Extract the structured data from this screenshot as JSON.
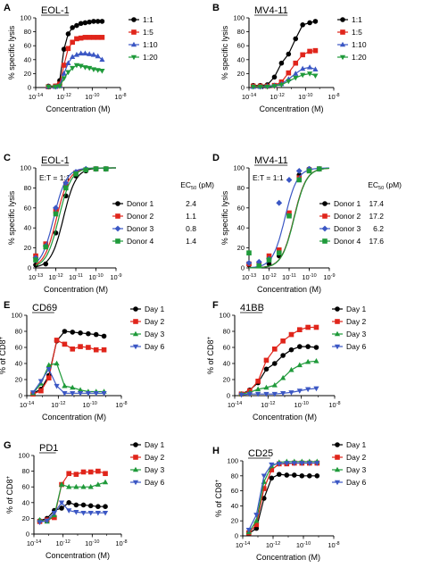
{
  "colors": {
    "black": "#000000",
    "red": "#e0251b",
    "blue": "#3b57c4",
    "green": "#1f9a3a"
  },
  "panels": [
    {
      "letter": "A",
      "title": "EOL-1",
      "ylabel": "% specific lysis",
      "xlabel": "Concentration (M)"
    },
    {
      "letter": "B",
      "title": "MV4-11",
      "ylabel": "% specific lysis",
      "xlabel": "Concentration (M)"
    },
    {
      "letter": "C",
      "title": "EOL-1",
      "ylabel": "% specific lysis",
      "xlabel": "Concentration (M)",
      "note": "E:T = 1:1",
      "ec50_header": "EC50 (pM)"
    },
    {
      "letter": "D",
      "title": "MV4-11",
      "ylabel": "% specific lysis",
      "xlabel": "Concentration (M)",
      "note": "E:T = 1:1",
      "ec50_header": "EC50 (pM)"
    },
    {
      "letter": "E",
      "title": "CD69",
      "ylabel": "% of CD8+",
      "xlabel": "Concentration (M)"
    },
    {
      "letter": "F",
      "title": "41BB",
      "ylabel": "% of CD8+",
      "xlabel": "Concentration (M)"
    },
    {
      "letter": "G",
      "title": "PD1",
      "ylabel": "% of CD8+",
      "xlabel": "Concentration (M)"
    },
    {
      "letter": "H",
      "title": "CD25",
      "ylabel": "% of CD8+",
      "xlabel": "Concentration (M)"
    }
  ],
  "chart_data": [
    {
      "type": "line",
      "title": "EOL-1",
      "xlabel": "Concentration (M)",
      "ylabel": "% specific lysis",
      "xscale": "log",
      "xlim_exp": [
        -14,
        -8
      ],
      "xticks": [
        "10-14",
        "10-12",
        "10-10",
        "10-8"
      ],
      "ylim": [
        0,
        100
      ],
      "yticks": [
        0,
        20,
        40,
        60,
        80,
        100
      ],
      "x_exp": [
        -13.1,
        -12.6,
        -12.3,
        -12.0,
        -11.7,
        -11.4,
        -11.1,
        -10.8,
        -10.5,
        -10.2,
        -9.9,
        -9.6,
        -9.3
      ],
      "series": [
        {
          "name": "1:1",
          "color": "black",
          "marker": "circle",
          "values": [
            2,
            2,
            10,
            55,
            77,
            86,
            89,
            92,
            93,
            94,
            95,
            95,
            95
          ]
        },
        {
          "name": "1:5",
          "color": "red",
          "marker": "square",
          "values": [
            1,
            2,
            5,
            32,
            56,
            65,
            70,
            71,
            72,
            72,
            72,
            72,
            72
          ]
        },
        {
          "name": "1:10",
          "color": "blue",
          "marker": "triangle-up",
          "values": [
            1,
            1,
            3,
            20,
            35,
            44,
            47,
            49,
            49,
            48,
            47,
            45,
            40
          ]
        },
        {
          "name": "1:20",
          "color": "green",
          "marker": "triangle-down",
          "values": [
            1,
            1,
            2,
            13,
            22,
            28,
            32,
            31,
            29,
            28,
            26,
            25,
            24
          ]
        }
      ],
      "legend": "right"
    },
    {
      "type": "line",
      "title": "MV4-11",
      "xlabel": "Concentration (M)",
      "ylabel": "% specific lysis",
      "xscale": "log",
      "xlim_exp": [
        -14,
        -8
      ],
      "xticks": [
        "10-14",
        "10-12",
        "10-10",
        "10-8"
      ],
      "ylim": [
        0,
        100
      ],
      "yticks": [
        0,
        20,
        40,
        60,
        80,
        100
      ],
      "x_exp": [
        -13.7,
        -13.2,
        -12.7,
        -12.2,
        -11.7,
        -11.2,
        -10.7,
        -10.2,
        -9.7,
        -9.3
      ],
      "series": [
        {
          "name": "1:1",
          "color": "black",
          "marker": "circle",
          "values": [
            3,
            3,
            4,
            15,
            35,
            48,
            70,
            90,
            93,
            95
          ]
        },
        {
          "name": "1:5",
          "color": "red",
          "marker": "square",
          "values": [
            2,
            2,
            2,
            3,
            8,
            21,
            35,
            47,
            52,
            53
          ]
        },
        {
          "name": "1:10",
          "color": "blue",
          "marker": "triangle-up",
          "values": [
            1,
            1,
            2,
            3,
            5,
            12,
            20,
            27,
            29,
            26
          ]
        },
        {
          "name": "1:20",
          "color": "green",
          "marker": "triangle-down",
          "values": [
            1,
            1,
            1,
            2,
            4,
            9,
            14,
            18,
            20,
            17
          ]
        }
      ],
      "legend": "right"
    },
    {
      "type": "line",
      "title": "EOL-1",
      "xlabel": "Concentration (M)",
      "ylabel": "% specific lysis",
      "xscale": "log",
      "xlim_exp": [
        -13,
        -9
      ],
      "xticks": [
        "10-13",
        "10-12",
        "10-11",
        "10-10",
        "10-9"
      ],
      "ylim": [
        0,
        100
      ],
      "yticks": [
        0,
        20,
        40,
        60,
        80,
        100
      ],
      "annotation": "E:T = 1:1",
      "x_exp": [
        -13.0,
        -12.5,
        -12.0,
        -11.5,
        -11.0,
        -10.5,
        -10.0,
        -9.5
      ],
      "series": [
        {
          "name": "Donor 1",
          "ec50": "2.4",
          "color": "black",
          "marker": "circle",
          "values": [
            3,
            4,
            35,
            72,
            92,
            97,
            99,
            99
          ],
          "ec50_exp": -11.62
        },
        {
          "name": "Donor 2",
          "ec50": "1.1",
          "color": "red",
          "marker": "square",
          "values": [
            12,
            24,
            57,
            84,
            95,
            98,
            99,
            99
          ],
          "ec50_exp": -11.96
        },
        {
          "name": "Donor 3",
          "ec50": "0.8",
          "color": "blue",
          "marker": "diamond",
          "values": [
            10,
            22,
            60,
            85,
            96,
            99,
            99,
            99
          ],
          "ec50_exp": -12.1
        },
        {
          "name": "Donor 4",
          "ec50": "1.4",
          "color": "green",
          "marker": "square",
          "values": [
            8,
            21,
            54,
            80,
            94,
            98,
            99,
            99
          ],
          "ec50_exp": -11.85
        }
      ],
      "legend": "right"
    },
    {
      "type": "line",
      "title": "MV4-11",
      "xlabel": "Concentration (M)",
      "ylabel": "% specific lysis",
      "xscale": "log",
      "xlim_exp": [
        -13,
        -9
      ],
      "xticks": [
        "10-13",
        "10-12",
        "10-11",
        "10-10",
        "10-9"
      ],
      "ylim": [
        0,
        100
      ],
      "yticks": [
        0,
        20,
        40,
        60,
        80,
        100
      ],
      "annotation": "E:T = 1:1",
      "x_exp": [
        -13.0,
        -12.5,
        -12.0,
        -11.5,
        -11.0,
        -10.5,
        -10.0,
        -9.5
      ],
      "series": [
        {
          "name": "Donor 1",
          "ec50": "17.4",
          "color": "black",
          "marker": "circle",
          "values": [
            3,
            5,
            4,
            12,
            53,
            93,
            99,
            99
          ],
          "ec50_exp": -10.76
        },
        {
          "name": "Donor 2",
          "ec50": "17.2",
          "color": "red",
          "marker": "square",
          "values": [
            4,
            3,
            12,
            18,
            55,
            90,
            98,
            99
          ],
          "ec50_exp": -10.76
        },
        {
          "name": "Donor 3",
          "ec50": "6.2",
          "color": "blue",
          "marker": "diamond",
          "values": [
            5,
            6,
            9,
            65,
            88,
            97,
            99,
            99
          ],
          "ec50_exp": -11.21
        },
        {
          "name": "Donor 4",
          "ec50": "17.6",
          "color": "green",
          "marker": "square",
          "values": [
            15,
            2,
            8,
            15,
            52,
            88,
            97,
            99
          ],
          "ec50_exp": -10.75
        }
      ],
      "legend": "right"
    },
    {
      "type": "line",
      "title": "CD69",
      "xlabel": "Concentration (M)",
      "ylabel": "% of CD8+",
      "xscale": "log",
      "xlim_exp": [
        -14,
        -8
      ],
      "xticks": [
        "10-14",
        "10-12",
        "10-10",
        "10-8"
      ],
      "ylim": [
        0,
        100
      ],
      "yticks": [
        0,
        20,
        40,
        60,
        80,
        100
      ],
      "x_exp": [
        -13.6,
        -13.1,
        -12.6,
        -12.1,
        -11.6,
        -11.1,
        -10.6,
        -10.1,
        -9.6,
        -9.1
      ],
      "series": [
        {
          "name": "Day 1",
          "color": "black",
          "marker": "circle",
          "values": [
            3,
            8,
            25,
            68,
            80,
            79,
            78,
            77,
            76,
            74
          ]
        },
        {
          "name": "Day 2",
          "color": "red",
          "marker": "square",
          "values": [
            2,
            6,
            22,
            69,
            64,
            58,
            61,
            60,
            57,
            57
          ]
        },
        {
          "name": "Day 3",
          "color": "green",
          "marker": "triangle-up",
          "values": [
            3,
            15,
            38,
            40,
            12,
            10,
            7,
            5,
            5,
            5
          ]
        },
        {
          "name": "Day 6",
          "color": "blue",
          "marker": "triangle-down",
          "values": [
            4,
            18,
            33,
            12,
            3,
            3,
            3,
            3,
            3,
            3
          ]
        }
      ],
      "legend": "right"
    },
    {
      "type": "line",
      "title": "41BB",
      "xlabel": "Concentration (M)",
      "ylabel": "% of CD8+",
      "xscale": "log",
      "xlim_exp": [
        -14,
        -8
      ],
      "xticks": [
        "10-14",
        "10-12",
        "10-10",
        "10-8"
      ],
      "ylim": [
        0,
        100
      ],
      "yticks": [
        0,
        20,
        40,
        60,
        80,
        100
      ],
      "x_exp": [
        -13.6,
        -13.1,
        -12.6,
        -12.1,
        -11.6,
        -11.1,
        -10.6,
        -10.1,
        -9.6,
        -9.1
      ],
      "series": [
        {
          "name": "Day 1",
          "color": "black",
          "marker": "circle",
          "values": [
            2,
            7,
            16,
            33,
            40,
            50,
            57,
            61,
            61,
            60
          ]
        },
        {
          "name": "Day 2",
          "color": "red",
          "marker": "square",
          "values": [
            2,
            6,
            18,
            44,
            58,
            68,
            76,
            82,
            85,
            85
          ]
        },
        {
          "name": "Day 3",
          "color": "green",
          "marker": "triangle-up",
          "values": [
            2,
            4,
            8,
            10,
            13,
            22,
            32,
            38,
            42,
            43
          ]
        },
        {
          "name": "Day 6",
          "color": "blue",
          "marker": "triangle-down",
          "values": [
            1,
            2,
            2,
            2,
            2,
            3,
            4,
            6,
            8,
            9
          ]
        }
      ],
      "legend": "right"
    },
    {
      "type": "line",
      "title": "PD1",
      "xlabel": "Concentration (M)",
      "ylabel": "% of CD8+",
      "xscale": "log",
      "xlim_exp": [
        -14,
        -8
      ],
      "xticks": [
        "10-14",
        "10-12",
        "10-10",
        "10-8"
      ],
      "ylim": [
        0,
        100
      ],
      "yticks": [
        0,
        20,
        40,
        60,
        80,
        100
      ],
      "x_exp": [
        -13.6,
        -13.1,
        -12.6,
        -12.1,
        -11.6,
        -11.1,
        -10.6,
        -10.1,
        -9.6,
        -9.1
      ],
      "series": [
        {
          "name": "Day 1",
          "color": "black",
          "marker": "circle",
          "values": [
            17,
            20,
            30,
            33,
            40,
            37,
            37,
            36,
            35,
            35
          ]
        },
        {
          "name": "Day 2",
          "color": "red",
          "marker": "square",
          "values": [
            16,
            18,
            21,
            63,
            77,
            76,
            79,
            79,
            80,
            77
          ]
        },
        {
          "name": "Day 3",
          "color": "green",
          "marker": "triangle-up",
          "values": [
            18,
            16,
            24,
            63,
            60,
            60,
            60,
            60,
            63,
            66
          ]
        },
        {
          "name": "Day 6",
          "color": "blue",
          "marker": "triangle-down",
          "values": [
            15,
            17,
            27,
            40,
            30,
            28,
            27,
            27,
            27,
            27
          ]
        }
      ],
      "legend": "right"
    },
    {
      "type": "line",
      "title": "CD25",
      "xlabel": "Concentration (M)",
      "ylabel": "% of CD8+",
      "xscale": "log",
      "xlim_exp": [
        -14,
        -8
      ],
      "xticks": [
        "10-14",
        "10-12",
        "10-10",
        "10-8"
      ],
      "ylim": [
        0,
        100
      ],
      "yticks": [
        0,
        20,
        40,
        60,
        80,
        100
      ],
      "x_exp": [
        -13.6,
        -13.1,
        -12.6,
        -12.1,
        -11.6,
        -11.1,
        -10.6,
        -10.1,
        -9.6,
        -9.1
      ],
      "series": [
        {
          "name": "Day 1",
          "color": "black",
          "marker": "circle",
          "values": [
            3,
            10,
            50,
            77,
            82,
            81,
            81,
            80,
            80,
            80
          ]
        },
        {
          "name": "Day 2",
          "color": "red",
          "marker": "square",
          "values": [
            4,
            15,
            63,
            88,
            96,
            96,
            97,
            97,
            97,
            97
          ]
        },
        {
          "name": "Day 3",
          "color": "green",
          "marker": "triangle-up",
          "values": [
            5,
            20,
            72,
            93,
            98,
            99,
            99,
            99,
            99,
            99
          ]
        },
        {
          "name": "Day 6",
          "color": "blue",
          "marker": "triangle-down",
          "values": [
            8,
            28,
            80,
            95,
            96,
            97,
            97,
            97,
            97,
            97
          ]
        }
      ],
      "legend": "right"
    }
  ]
}
